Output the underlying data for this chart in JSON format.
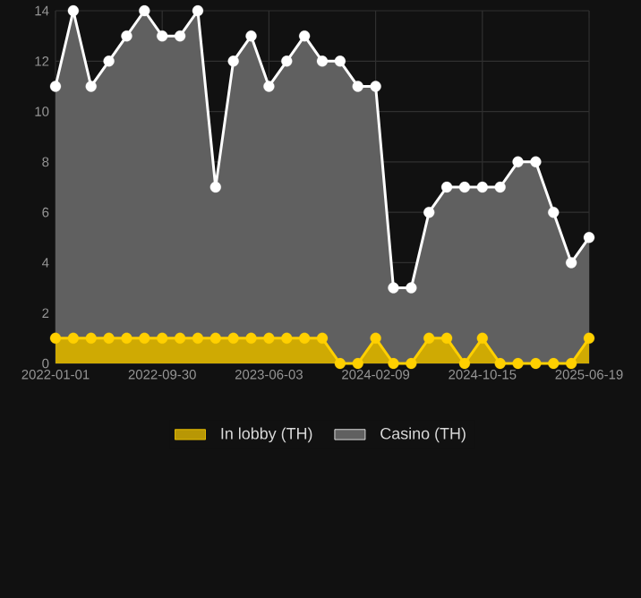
{
  "chart_data": {
    "type": "area",
    "categories": [
      "2022-01-01",
      null,
      null,
      null,
      null,
      null,
      "2022-09-30",
      null,
      null,
      null,
      null,
      null,
      "2023-06-03",
      null,
      null,
      null,
      null,
      null,
      "2024-02-09",
      null,
      null,
      null,
      null,
      null,
      "2024-10-15",
      null,
      null,
      null,
      null,
      null,
      "2025-06-19"
    ],
    "series": [
      {
        "name": "In lobby (TH)",
        "color": "#ffd000",
        "values": [
          1,
          1,
          1,
          1,
          1,
          1,
          1,
          1,
          1,
          1,
          1,
          1,
          1,
          1,
          1,
          1,
          0,
          0,
          1,
          0,
          0,
          1,
          1,
          0,
          1,
          0,
          0,
          0,
          0,
          0,
          1
        ]
      },
      {
        "name": "Casino (TH)",
        "color": "#ffffff",
        "values": [
          11,
          14,
          11,
          12,
          13,
          14,
          13,
          13,
          14,
          7,
          12,
          13,
          11,
          12,
          13,
          12,
          12,
          11,
          11,
          3,
          3,
          6,
          7,
          7,
          7,
          7,
          8,
          8,
          6,
          4,
          5
        ]
      }
    ],
    "ylim": [
      0,
      14
    ],
    "yticks": [
      0,
      2,
      4,
      6,
      8,
      10,
      12,
      14
    ],
    "grid": true,
    "legend": "bottom",
    "marker": "circle"
  }
}
